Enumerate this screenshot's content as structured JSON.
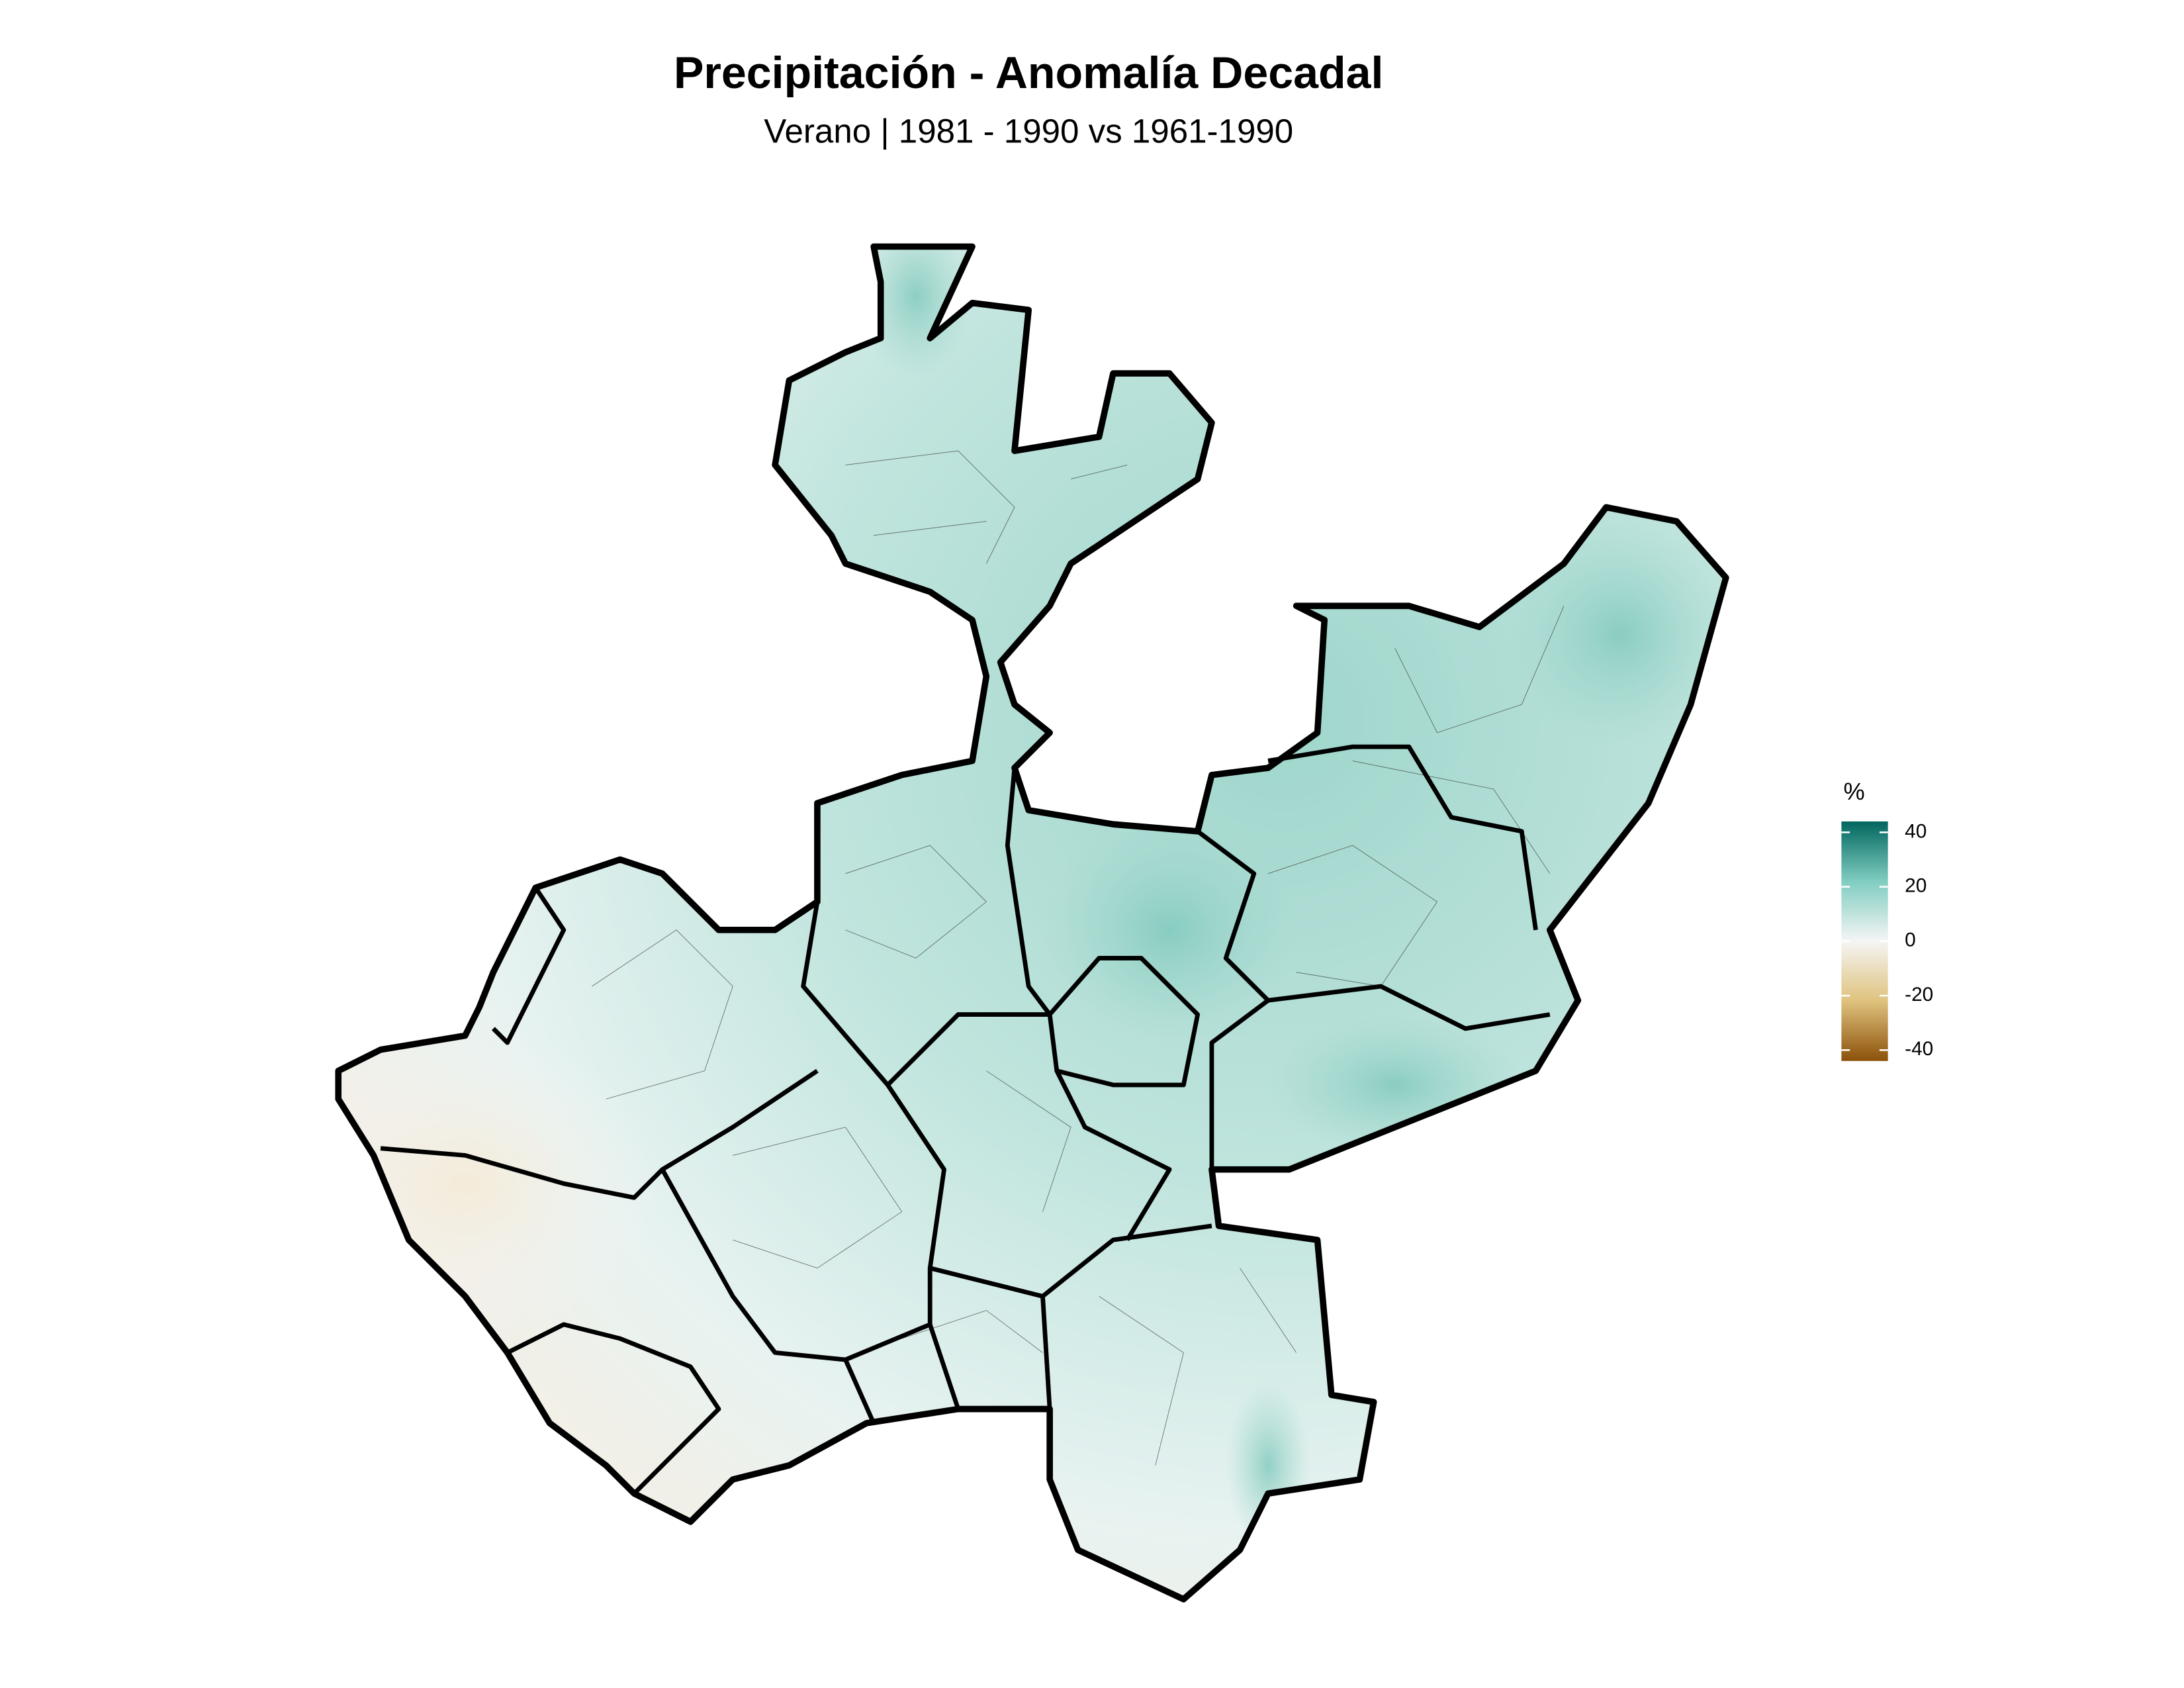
{
  "chart_data": {
    "type": "choropleth",
    "title": "Precipitación - Anomalía Decadal",
    "subtitle": "Verano | 1981 - 1990 vs 1961-1990",
    "legend": {
      "title": "%",
      "position": "right",
      "lim": [
        -44,
        44
      ],
      "ticks": [
        40,
        20,
        0,
        -20,
        -40
      ],
      "colors": [
        "#8c510a",
        "#dfc27d",
        "#f5f5f5",
        "#80cdc1",
        "#01665e"
      ]
    }
  }
}
